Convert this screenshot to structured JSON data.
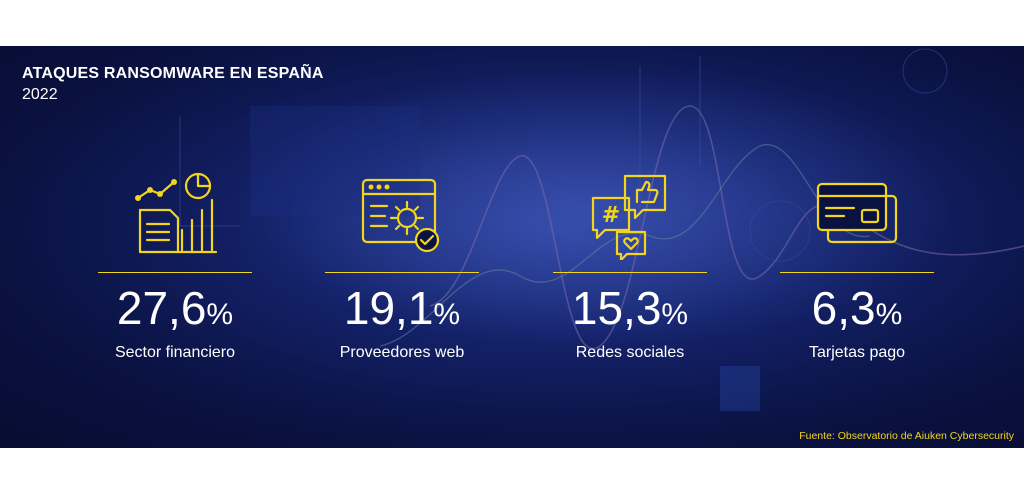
{
  "header": {
    "title": "ATAQUES RANSOMWARE EN ESPAÑA",
    "year": "2022"
  },
  "stats": [
    {
      "value": "27,6",
      "unit": "%",
      "label": "Sector financiero",
      "icon": "financial-chart-icon"
    },
    {
      "value": "19,1",
      "unit": "%",
      "label": "Proveedores web",
      "icon": "web-settings-icon"
    },
    {
      "value": "15,3",
      "unit": "%",
      "label": "Redes sociales",
      "icon": "social-media-icon"
    },
    {
      "value": "6,3",
      "unit": "%",
      "label": "Tarjetas pago",
      "icon": "payment-cards-icon"
    }
  ],
  "source": "Fuente: Observatorio de Aiuken Cybersecurity",
  "colors": {
    "accent": "#f3d51a",
    "background": "#0a1242",
    "text": "#ffffff"
  }
}
